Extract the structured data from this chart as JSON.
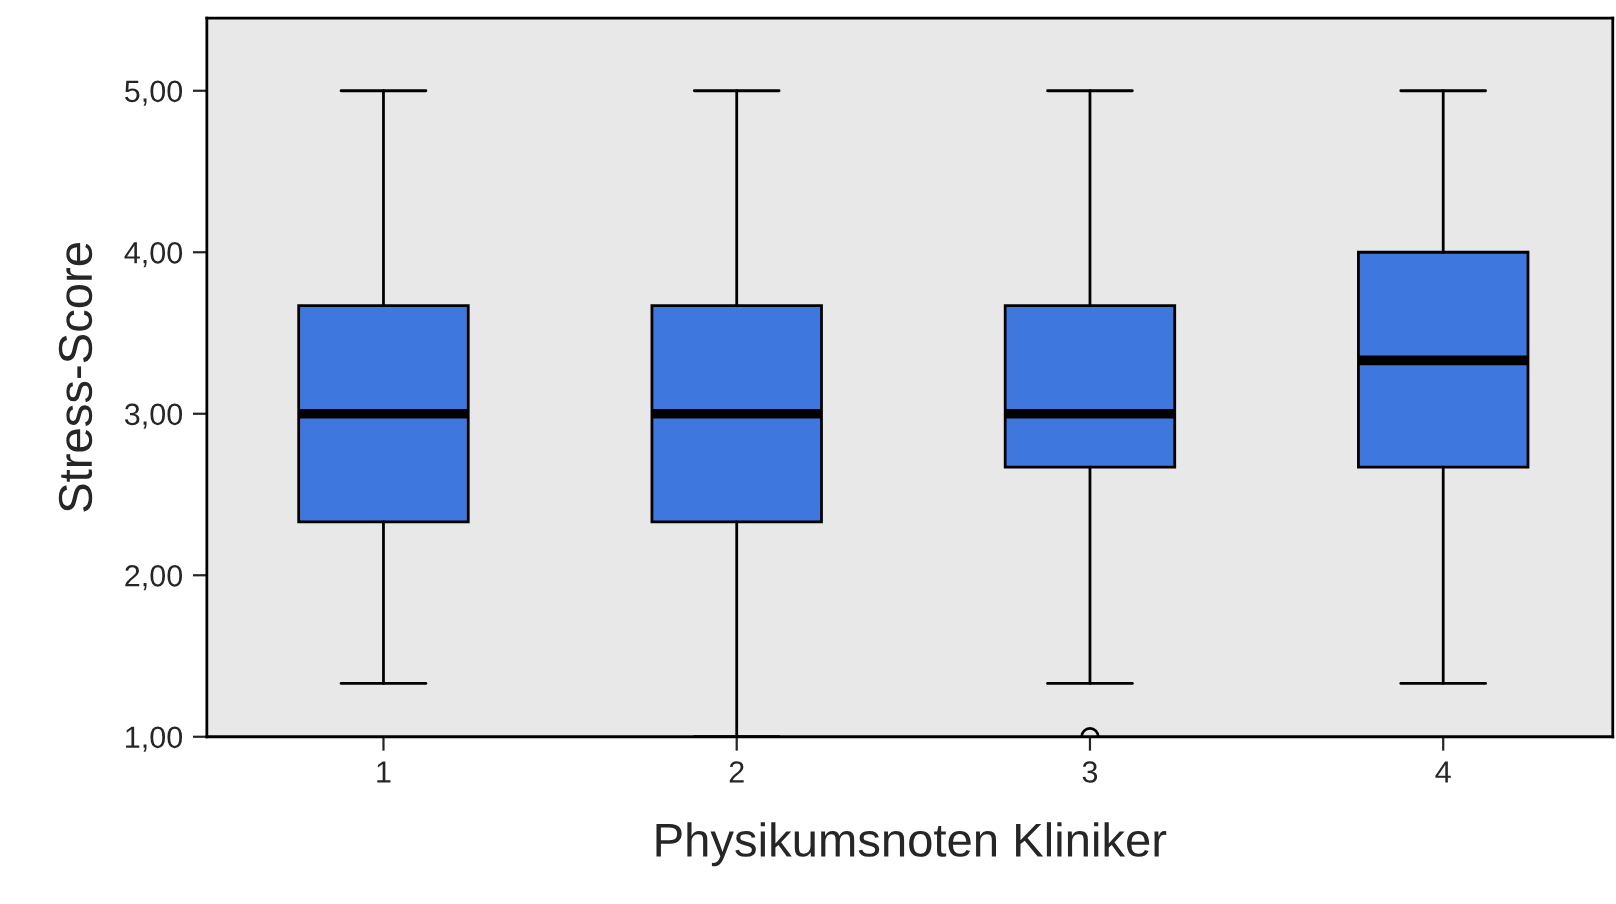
{
  "chart_data": {
    "type": "box",
    "xlabel": "Physikumsnoten Kliniker",
    "ylabel": "Stress-Score",
    "categories": [
      "1",
      "2",
      "3",
      "4"
    ],
    "boxes": [
      {
        "low": 1.33,
        "q1": 2.33,
        "median": 3.0,
        "q3": 3.67,
        "high": 5.0
      },
      {
        "low": 1.0,
        "q1": 2.33,
        "median": 3.0,
        "q3": 3.67,
        "high": 5.0
      },
      {
        "low": 1.33,
        "q1": 2.67,
        "median": 3.0,
        "q3": 3.67,
        "high": 5.0,
        "outliers": [
          1.0
        ]
      },
      {
        "low": 1.33,
        "q1": 2.67,
        "median": 3.33,
        "q3": 4.0,
        "high": 5.0
      }
    ],
    "color": "#3e78de",
    "ylim": [
      1,
      5.45
    ],
    "yticks": [
      {
        "value": 1,
        "label": "1,00"
      },
      {
        "value": 2,
        "label": "2,00"
      },
      {
        "value": 3,
        "label": "3,00"
      },
      {
        "value": 4,
        "label": "4,00"
      },
      {
        "value": 5,
        "label": "5,00"
      }
    ],
    "grid": false,
    "legend": false
  }
}
